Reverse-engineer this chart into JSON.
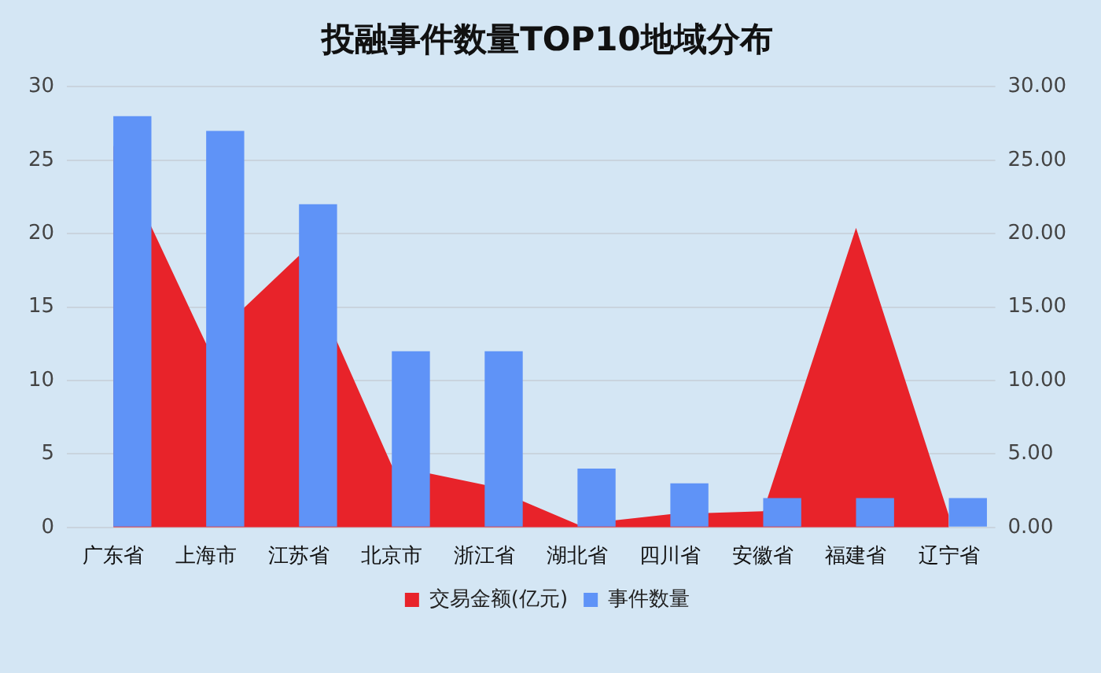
{
  "chart_data": {
    "type": "bar",
    "title": "投融事件数量TOP10地域分布",
    "categories": [
      "广东省",
      "上海市",
      "江苏省",
      "北京市",
      "浙江省",
      "湖北省",
      "四川省",
      "安徽省",
      "福建省",
      "辽宁省"
    ],
    "series": [
      {
        "name": "交易金额(亿元)",
        "type": "area",
        "axis": "y2",
        "color": "#e8232a",
        "values": [
          26,
          12.5,
          18.5,
          4.2,
          2.9,
          0.2,
          0.9,
          1.1,
          20.4,
          0.8
        ]
      },
      {
        "name": "事件数量",
        "color": "#5f93f7",
        "values": [
          28,
          27,
          22,
          12,
          12,
          4,
          3,
          2,
          2,
          2
        ]
      }
    ],
    "ylim": [
      0,
      30
    ],
    "yticks": [
      0,
      5,
      10,
      15,
      20,
      25,
      30
    ],
    "y2lim": [
      0,
      30
    ],
    "y2ticks": [
      {
        "value": 0,
        "label": "0.00"
      },
      {
        "value": 5,
        "label": "5.00"
      },
      {
        "value": 10,
        "label": "10.00"
      },
      {
        "value": 15,
        "label": "15.00"
      },
      {
        "value": 20,
        "label": "20.00"
      },
      {
        "value": 25,
        "label": "25.00"
      },
      {
        "value": 30,
        "label": "30.00"
      }
    ],
    "grid": "y",
    "legend": "bottom"
  }
}
